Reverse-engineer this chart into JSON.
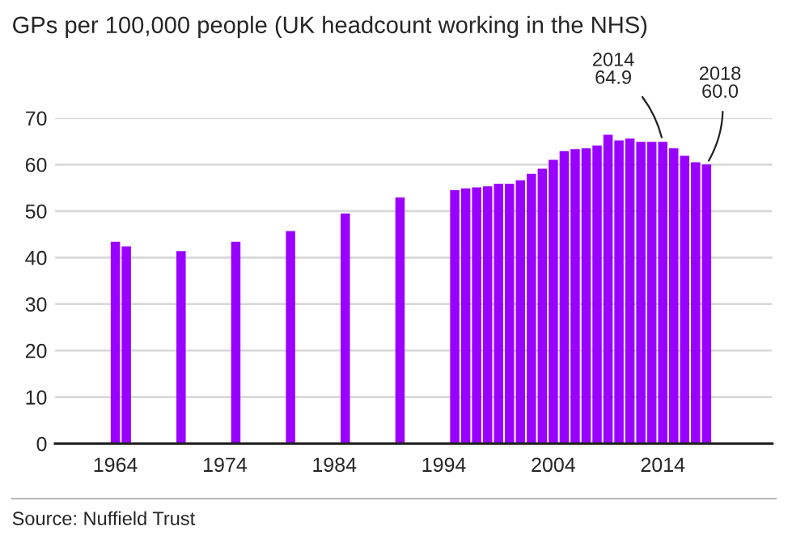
{
  "chart_data": {
    "type": "bar",
    "title": "GPs per 100,000 people (UK headcount working in the NHS)",
    "x": [
      1964,
      1965,
      1970,
      1975,
      1980,
      1985,
      1990,
      1995,
      1996,
      1997,
      1998,
      1999,
      2000,
      2001,
      2002,
      2003,
      2004,
      2005,
      2006,
      2007,
      2008,
      2009,
      2010,
      2011,
      2012,
      2013,
      2014,
      2015,
      2016,
      2017,
      2018
    ],
    "values": [
      43.4,
      42.4,
      41.4,
      43.4,
      45.7,
      49.5,
      52.9,
      54.5,
      54.9,
      55.1,
      55.3,
      55.9,
      55.9,
      56.6,
      58.0,
      59.1,
      61.0,
      62.9,
      63.3,
      63.5,
      64.1,
      66.4,
      65.2,
      65.6,
      64.9,
      64.9,
      64.9,
      63.5,
      61.9,
      60.5,
      60.0
    ],
    "color": "#9900ff",
    "xlim": [
      1958.5,
      2024
    ],
    "xticks": [
      1964,
      1974,
      1984,
      1994,
      2004,
      2014
    ],
    "ylim": [
      0,
      70
    ],
    "yticks": [
      0,
      10,
      20,
      30,
      40,
      50,
      60,
      70
    ],
    "grid": "y",
    "annotations": [
      {
        "text": "2014\n64.9",
        "x": 2014,
        "y": 64.9
      },
      {
        "text": "2018\n60.0",
        "x": 2018,
        "y": 60.0
      },
      "Source: Nuffield Trust"
    ]
  }
}
